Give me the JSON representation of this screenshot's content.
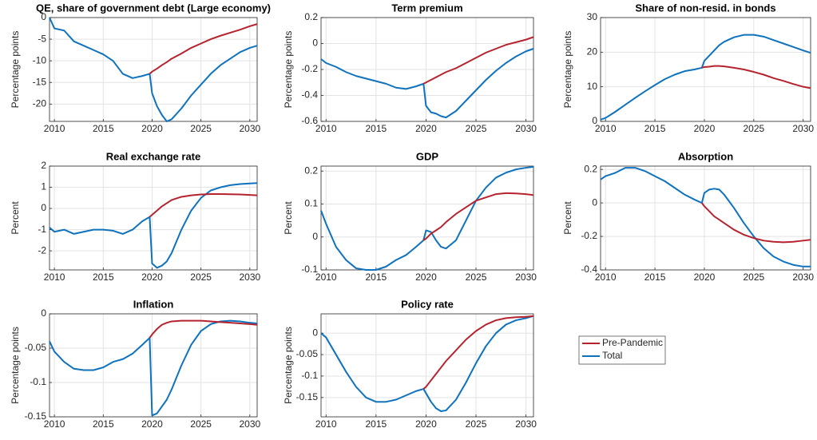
{
  "legend": [
    {
      "name": "Pre-Pandemic",
      "color": "#b5232f"
    },
    {
      "name": "Total",
      "color": "#0f72bd"
    }
  ],
  "chart_data": [
    {
      "type": "line",
      "title": "QE, share of government debt (Large economy)",
      "ylabel": "Percentage points",
      "x": [
        2009.5,
        2010,
        2011,
        2012,
        2013,
        2014,
        2015,
        2016,
        2017,
        2018,
        2019,
        2019.75,
        2020,
        2020.5,
        2021,
        2021.5,
        2022,
        2023,
        2024,
        2025,
        2026,
        2027,
        2028,
        2029,
        2030,
        2030.75
      ],
      "xlim": [
        2009.5,
        2030.75
      ],
      "xticks": [
        2010,
        2015,
        2020,
        2025,
        2030
      ],
      "ylim": [
        -24,
        0
      ],
      "yticks": [
        -20,
        -15,
        -10,
        -5,
        0
      ],
      "grid": true,
      "series": [
        {
          "values": [
            null,
            null,
            null,
            null,
            null,
            null,
            null,
            null,
            null,
            null,
            null,
            -13,
            -12.5,
            -11.8,
            -11,
            -10.3,
            -9.5,
            -8.3,
            -7,
            -6,
            -5,
            -4.2,
            -3.5,
            -2.8,
            -2,
            -1.5
          ]
        },
        {
          "values": [
            0,
            -2.5,
            -3,
            -5.5,
            -6.5,
            -7.5,
            -8.5,
            -10,
            -13,
            -14,
            -13.5,
            -13,
            -17.5,
            -20.5,
            -22.5,
            -24,
            -23.5,
            -21,
            -18,
            -15.5,
            -13,
            -11,
            -9.5,
            -8,
            -7,
            -6.5
          ]
        }
      ]
    },
    {
      "type": "line",
      "title": "Term premium",
      "ylabel": "Percentage points",
      "x": [
        2009.5,
        2010,
        2011,
        2012,
        2013,
        2014,
        2015,
        2016,
        2017,
        2018,
        2019,
        2019.75,
        2020,
        2020.5,
        2021,
        2021.5,
        2022,
        2023,
        2024,
        2025,
        2026,
        2027,
        2028,
        2029,
        2030,
        2030.75
      ],
      "xlim": [
        2009.5,
        2030.75
      ],
      "xticks": [
        2010,
        2015,
        2020,
        2025,
        2030
      ],
      "ylim": [
        -0.6,
        0.2
      ],
      "yticks": [
        -0.6,
        -0.4,
        -0.2,
        0,
        0.2
      ],
      "grid": true,
      "series": [
        {
          "values": [
            null,
            null,
            null,
            null,
            null,
            null,
            null,
            null,
            null,
            null,
            null,
            -0.31,
            -0.3,
            -0.28,
            -0.26,
            -0.24,
            -0.22,
            -0.19,
            -0.15,
            -0.11,
            -0.07,
            -0.04,
            -0.01,
            0.01,
            0.03,
            0.05
          ]
        },
        {
          "values": [
            -0.12,
            -0.15,
            -0.18,
            -0.22,
            -0.25,
            -0.27,
            -0.29,
            -0.31,
            -0.34,
            -0.35,
            -0.33,
            -0.31,
            -0.48,
            -0.53,
            -0.54,
            -0.56,
            -0.57,
            -0.52,
            -0.44,
            -0.36,
            -0.28,
            -0.21,
            -0.15,
            -0.1,
            -0.06,
            -0.04
          ]
        }
      ]
    },
    {
      "type": "line",
      "title": "Share of non-resid. in bonds",
      "ylabel": "Percentage points",
      "x": [
        2009.5,
        2010,
        2011,
        2012,
        2013,
        2014,
        2015,
        2016,
        2017,
        2018,
        2019,
        2019.75,
        2020,
        2020.5,
        2021,
        2021.5,
        2022,
        2023,
        2024,
        2025,
        2026,
        2027,
        2028,
        2029,
        2030,
        2030.75
      ],
      "xlim": [
        2009.5,
        2030.75
      ],
      "xticks": [
        2010,
        2015,
        2020,
        2025,
        2030
      ],
      "ylim": [
        0,
        30
      ],
      "yticks": [
        0,
        10,
        20,
        30
      ],
      "grid": true,
      "series": [
        {
          "values": [
            null,
            null,
            null,
            null,
            null,
            null,
            null,
            null,
            null,
            null,
            null,
            15.5,
            15.7,
            15.8,
            16,
            16,
            15.9,
            15.5,
            15,
            14.3,
            13.5,
            12.5,
            11.7,
            10.8,
            10,
            9.6
          ]
        },
        {
          "values": [
            0.5,
            1,
            2.8,
            4.8,
            6.8,
            8.7,
            10.5,
            12.2,
            13.5,
            14.5,
            15,
            15.5,
            17.5,
            19,
            20.5,
            22,
            23,
            24.3,
            25,
            25,
            24.5,
            23.5,
            22.5,
            21.5,
            20.5,
            19.8
          ]
        }
      ]
    },
    {
      "type": "line",
      "title": "Real exchange rate",
      "ylabel": "Percent",
      "x": [
        2009.5,
        2010,
        2011,
        2012,
        2013,
        2014,
        2015,
        2016,
        2017,
        2018,
        2019,
        2019.75,
        2020,
        2020.5,
        2021,
        2021.5,
        2022,
        2023,
        2024,
        2025,
        2026,
        2027,
        2028,
        2029,
        2030,
        2030.75
      ],
      "xlim": [
        2009.5,
        2030.75
      ],
      "xticks": [
        2010,
        2015,
        2020,
        2025,
        2030
      ],
      "ylim": [
        -2.9,
        2
      ],
      "yticks": [
        -2,
        -1,
        0,
        1,
        2
      ],
      "grid": true,
      "series": [
        {
          "values": [
            null,
            null,
            null,
            null,
            null,
            null,
            null,
            null,
            null,
            null,
            null,
            -0.4,
            -0.3,
            -0.1,
            0.1,
            0.25,
            0.4,
            0.55,
            0.62,
            0.66,
            0.68,
            0.68,
            0.67,
            0.66,
            0.64,
            0.62
          ]
        },
        {
          "values": [
            -0.9,
            -1.1,
            -1.0,
            -1.2,
            -1.1,
            -1.0,
            -1.0,
            -1.05,
            -1.2,
            -1.0,
            -0.6,
            -0.4,
            -2.6,
            -2.8,
            -2.7,
            -2.5,
            -2.1,
            -1.0,
            -0.1,
            0.5,
            0.85,
            1.0,
            1.1,
            1.15,
            1.18,
            1.2
          ]
        }
      ]
    },
    {
      "type": "line",
      "title": "GDP",
      "ylabel": "Percent",
      "x": [
        2009.5,
        2010,
        2011,
        2012,
        2013,
        2014,
        2015,
        2016,
        2017,
        2018,
        2019,
        2019.75,
        2020,
        2020.5,
        2021,
        2021.5,
        2022,
        2023,
        2024,
        2025,
        2026,
        2027,
        2028,
        2029,
        2030,
        2030.75
      ],
      "xlim": [
        2009.5,
        2030.75
      ],
      "xticks": [
        2010,
        2015,
        2020,
        2025,
        2030
      ],
      "ylim": [
        -0.1,
        0.215
      ],
      "yticks": [
        -0.1,
        0,
        0.1,
        0.2
      ],
      "grid": true,
      "series": [
        {
          "values": [
            null,
            null,
            null,
            null,
            null,
            null,
            null,
            null,
            null,
            null,
            null,
            -0.01,
            -0.005,
            0.01,
            0.02,
            0.03,
            0.045,
            0.07,
            0.09,
            0.11,
            0.12,
            0.13,
            0.133,
            0.132,
            0.13,
            0.127
          ]
        },
        {
          "values": [
            0.08,
            0.04,
            -0.03,
            -0.07,
            -0.095,
            -0.1,
            -0.1,
            -0.09,
            -0.07,
            -0.055,
            -0.03,
            -0.01,
            0.02,
            0.015,
            -0.01,
            -0.03,
            -0.035,
            -0.01,
            0.05,
            0.11,
            0.15,
            0.18,
            0.195,
            0.205,
            0.21,
            0.213
          ]
        }
      ]
    },
    {
      "type": "line",
      "title": "Absorption",
      "ylabel": "Percent",
      "x": [
        2009.5,
        2010,
        2011,
        2012,
        2013,
        2014,
        2015,
        2016,
        2017,
        2018,
        2019,
        2019.75,
        2020,
        2020.5,
        2021,
        2021.5,
        2022,
        2023,
        2024,
        2025,
        2026,
        2027,
        2028,
        2029,
        2030,
        2030.75
      ],
      "xlim": [
        2009.5,
        2030.75
      ],
      "xticks": [
        2010,
        2015,
        2020,
        2025,
        2030
      ],
      "ylim": [
        -0.4,
        0.22
      ],
      "yticks": [
        -0.4,
        -0.2,
        0,
        0.2
      ],
      "grid": true,
      "series": [
        {
          "values": [
            null,
            null,
            null,
            null,
            null,
            null,
            null,
            null,
            null,
            null,
            null,
            0.0,
            -0.02,
            -0.05,
            -0.08,
            -0.1,
            -0.12,
            -0.16,
            -0.19,
            -0.21,
            -0.225,
            -0.232,
            -0.235,
            -0.232,
            -0.225,
            -0.22
          ]
        },
        {
          "values": [
            0.14,
            0.16,
            0.18,
            0.21,
            0.21,
            0.19,
            0.16,
            0.13,
            0.09,
            0.05,
            0.02,
            0.0,
            0.06,
            0.08,
            0.085,
            0.08,
            0.05,
            -0.03,
            -0.12,
            -0.2,
            -0.27,
            -0.32,
            -0.35,
            -0.37,
            -0.38,
            -0.38
          ]
        }
      ]
    },
    {
      "type": "line",
      "title": "Inflation",
      "ylabel": "Percentage points",
      "x": [
        2009.5,
        2010,
        2011,
        2012,
        2013,
        2014,
        2015,
        2016,
        2017,
        2018,
        2019,
        2019.75,
        2020,
        2020.5,
        2021,
        2021.5,
        2022,
        2023,
        2024,
        2025,
        2026,
        2027,
        2028,
        2029,
        2030,
        2030.75
      ],
      "xlim": [
        2009.5,
        2030.75
      ],
      "xticks": [
        2010,
        2015,
        2020,
        2025,
        2030
      ],
      "ylim": [
        -0.15,
        0
      ],
      "yticks": [
        -0.15,
        -0.1,
        -0.05,
        0
      ],
      "grid": true,
      "series": [
        {
          "values": [
            null,
            null,
            null,
            null,
            null,
            null,
            null,
            null,
            null,
            null,
            null,
            -0.035,
            -0.03,
            -0.022,
            -0.016,
            -0.013,
            -0.011,
            -0.01,
            -0.01,
            -0.01,
            -0.011,
            -0.012,
            -0.013,
            -0.014,
            -0.015,
            -0.016
          ]
        },
        {
          "values": [
            -0.04,
            -0.055,
            -0.07,
            -0.08,
            -0.082,
            -0.082,
            -0.078,
            -0.07,
            -0.066,
            -0.058,
            -0.045,
            -0.035,
            -0.148,
            -0.145,
            -0.135,
            -0.125,
            -0.11,
            -0.075,
            -0.045,
            -0.025,
            -0.015,
            -0.011,
            -0.01,
            -0.011,
            -0.013,
            -0.014
          ]
        }
      ]
    },
    {
      "type": "line",
      "title": "Policy rate",
      "ylabel": "Percentage points",
      "x": [
        2009.5,
        2010,
        2011,
        2012,
        2013,
        2014,
        2015,
        2016,
        2017,
        2018,
        2019,
        2019.75,
        2020,
        2020.5,
        2021,
        2021.5,
        2022,
        2023,
        2024,
        2025,
        2026,
        2027,
        2028,
        2029,
        2030,
        2030.75
      ],
      "xlim": [
        2009.5,
        2030.75
      ],
      "xticks": [
        2010,
        2015,
        2020,
        2025,
        2030
      ],
      "ylim": [
        -0.195,
        0.045
      ],
      "yticks": [
        -0.15,
        -0.1,
        -0.05,
        0
      ],
      "grid": true,
      "series": [
        {
          "values": [
            null,
            null,
            null,
            null,
            null,
            null,
            null,
            null,
            null,
            null,
            null,
            -0.13,
            -0.125,
            -0.11,
            -0.095,
            -0.08,
            -0.065,
            -0.04,
            -0.015,
            0.005,
            0.02,
            0.03,
            0.035,
            0.037,
            0.038,
            0.04
          ]
        },
        {
          "values": [
            0,
            -0.01,
            -0.05,
            -0.09,
            -0.125,
            -0.15,
            -0.16,
            -0.16,
            -0.155,
            -0.145,
            -0.135,
            -0.13,
            -0.14,
            -0.16,
            -0.175,
            -0.182,
            -0.18,
            -0.155,
            -0.115,
            -0.07,
            -0.03,
            0.0,
            0.02,
            0.03,
            0.035,
            0.04
          ]
        }
      ]
    }
  ]
}
